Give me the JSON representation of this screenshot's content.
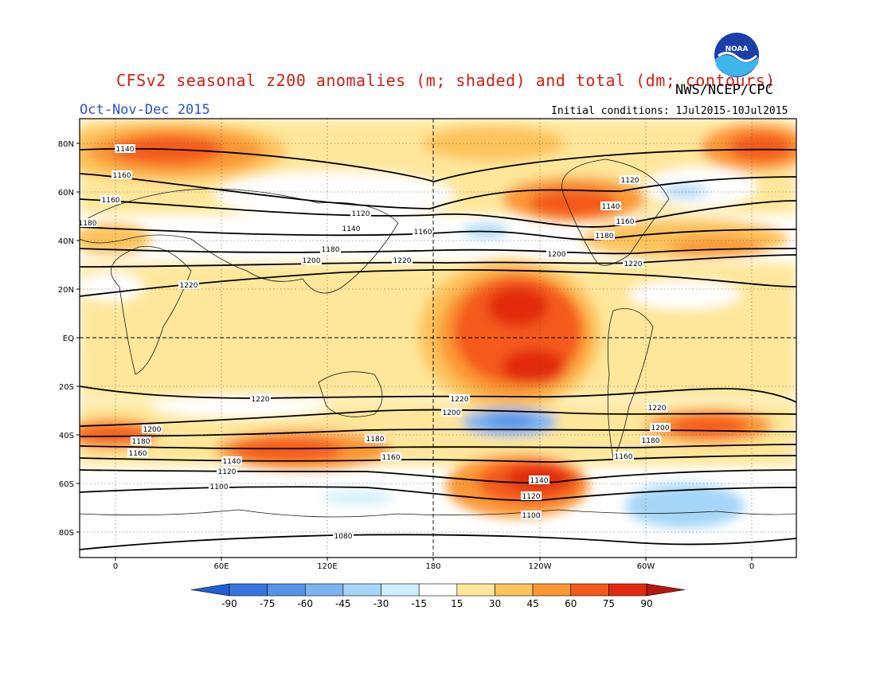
{
  "header": {
    "title": "CFSv2 seasonal z200 anomalies (m; shaded) and total (dm; contours)",
    "agency": "NWS/NCEP/CPC",
    "period": "Oct-Nov-Dec 2015",
    "initial_conditions": "Initial conditions: 1Jul2015-10Jul2015",
    "logo_text": "NOAA"
  },
  "map": {
    "projection": "cylindrical equidistant",
    "lat_labels": [
      "80N",
      "60N",
      "40N",
      "20N",
      "EQ",
      "20S",
      "40S",
      "60S",
      "80S"
    ],
    "lon_labels": [
      "0",
      "60E",
      "120E",
      "180",
      "120W",
      "60W",
      "0"
    ],
    "contour_labels": [
      "1080",
      "1100",
      "1120",
      "1140",
      "1160",
      "1180",
      "1200",
      "1220"
    ],
    "contour_units": "dm",
    "anomaly_units": "m"
  },
  "colorbar": {
    "tick_labels": [
      "-90",
      "-75",
      "-60",
      "-45",
      "-30",
      "-15",
      "15",
      "30",
      "45",
      "60",
      "75",
      "90"
    ],
    "colors": [
      "#1f5fd6",
      "#3577de",
      "#5394e6",
      "#7cb4f0",
      "#a6d6f7",
      "#cdeefc",
      "#ffffff",
      "#fee79a",
      "#fdc35c",
      "#fb9834",
      "#f45a1a",
      "#e22a10",
      "#b7170c"
    ]
  }
}
